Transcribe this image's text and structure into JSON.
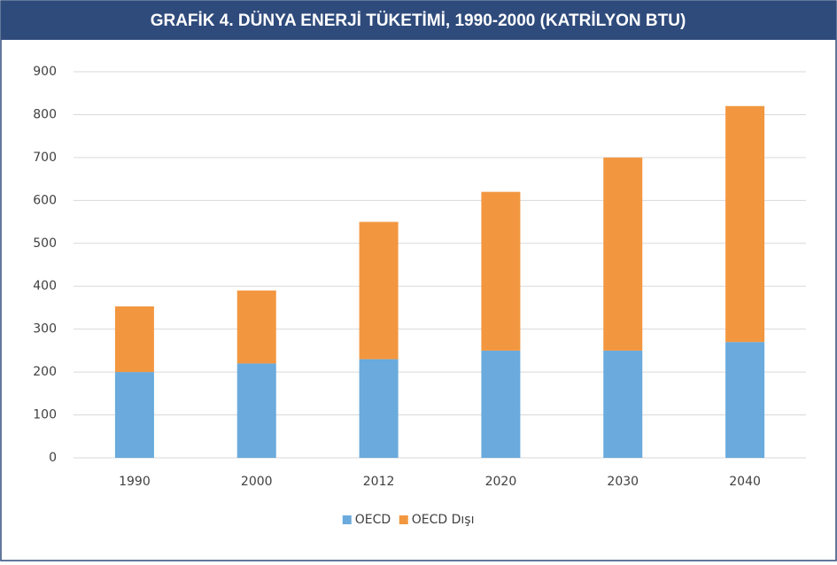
{
  "chart_data": {
    "type": "bar",
    "stacked": true,
    "title": "GRAFİK 4. DÜNYA ENERJİ TÜKETİMİ, 1990-2000 (KATRİLYON BTU)",
    "categories": [
      "1990",
      "2000",
      "2012",
      "2020",
      "2030",
      "2040"
    ],
    "series": [
      {
        "name": "OECD",
        "color": "#6aaadc",
        "values": [
          200,
          220,
          230,
          250,
          250,
          270
        ]
      },
      {
        "name": "OECD Dışı",
        "color": "#f29740",
        "values": [
          153,
          170,
          320,
          370,
          450,
          550
        ]
      }
    ],
    "ylim": [
      0,
      900
    ],
    "yticks": [
      0,
      100,
      200,
      300,
      400,
      500,
      600,
      700,
      800,
      900
    ],
    "grid": true,
    "legend": "bottom"
  }
}
